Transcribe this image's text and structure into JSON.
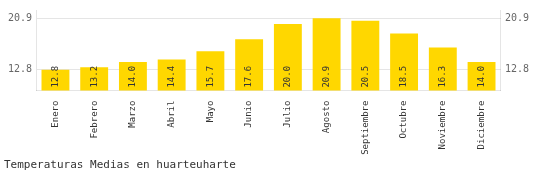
{
  "chart_data": {
    "type": "bar",
    "title": "Temperaturas Medias en huarteuharte",
    "categories": [
      "Enero",
      "Febrero",
      "Marzo",
      "Abril",
      "Mayo",
      "Junio",
      "Julio",
      "Agosto",
      "Septiembre",
      "Octubre",
      "Noviembre",
      "Diciembre"
    ],
    "values": [
      12.8,
      13.2,
      14.0,
      14.4,
      15.7,
      17.6,
      20.0,
      20.9,
      20.5,
      18.5,
      16.3,
      14.0
    ],
    "value_labels": [
      "12.8",
      "13.2",
      "14.0",
      "14.4",
      "15.7",
      "17.6",
      "20.0",
      "20.9",
      "20.5",
      "18.5",
      "16.3",
      "14.0"
    ],
    "data_labels": true,
    "color": "#FFD700",
    "ylim": [
      9.5,
      22.2
    ],
    "yticks": [
      12.8,
      20.9
    ],
    "y2lim": [
      9.5,
      22.2
    ],
    "y2ticks": [
      12.8,
      20.9
    ],
    "grid": true
  }
}
